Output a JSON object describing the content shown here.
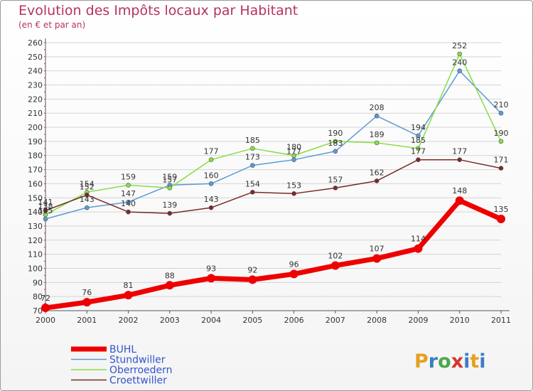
{
  "header": {
    "title": "Evolution des Impôts locaux par Habitant",
    "subtitle": "(en € et par an)"
  },
  "logo": {
    "letters": [
      "P",
      "r",
      "o",
      "x",
      "i",
      "t",
      "i"
    ],
    "colors": [
      "#e8a020",
      "#3b7dc4",
      "#4aa84a",
      "#d8342c",
      "#3b7dc4",
      "#e8a020",
      "#3b7dc4"
    ]
  },
  "chart_data": {
    "type": "line",
    "title": "Evolution des Impôts locaux par Habitant",
    "subtitle": "(en € et par an)",
    "xlabel": "",
    "ylabel": "",
    "x": [
      2000,
      2001,
      2002,
      2003,
      2004,
      2005,
      2006,
      2007,
      2008,
      2009,
      2010,
      2011
    ],
    "ylim": [
      70,
      260
    ],
    "yticks": [
      70,
      80,
      90,
      100,
      110,
      120,
      130,
      140,
      150,
      160,
      170,
      180,
      190,
      200,
      210,
      220,
      230,
      240,
      250,
      260
    ],
    "grid": "horizontal",
    "legend_position": "bottom-left",
    "series": [
      {
        "name": "BUHL",
        "color": "#ee0000",
        "values": [
          72,
          76,
          81,
          88,
          93,
          92,
          96,
          102,
          107,
          114,
          148,
          135
        ],
        "labels": [
          "72",
          "76",
          "81",
          "88",
          "93",
          "92",
          "96",
          "102",
          "107",
          "114",
          "148",
          "135"
        ]
      },
      {
        "name": "Stundwiller",
        "color": "#5b9bd5",
        "values": [
          135,
          143,
          147,
          159,
          160,
          173,
          177,
          183,
          208,
          194,
          240,
          210
        ],
        "labels": [
          "135",
          "143",
          "147",
          "159",
          "160",
          "173",
          "177",
          "183",
          "208",
          "194",
          "240",
          "210"
        ]
      },
      {
        "name": "Oberroedern",
        "color": "#88dd44",
        "values": [
          138,
          154,
          159,
          157,
          177,
          185,
          180,
          190,
          189,
          185,
          252,
          190
        ],
        "labels": [
          "138",
          "154",
          "159",
          "157",
          "177",
          "185",
          "180",
          "190",
          "189",
          "185",
          "252",
          "190"
        ]
      },
      {
        "name": "Croettwiller",
        "color": "#7a2a2a",
        "values": [
          141,
          152,
          140,
          139,
          143,
          154,
          153,
          157,
          162,
          177,
          177,
          171
        ],
        "labels": [
          "141",
          "152",
          "140",
          "139",
          "143",
          "154",
          "153",
          "157",
          "162",
          "177",
          "177",
          "171"
        ]
      }
    ]
  }
}
